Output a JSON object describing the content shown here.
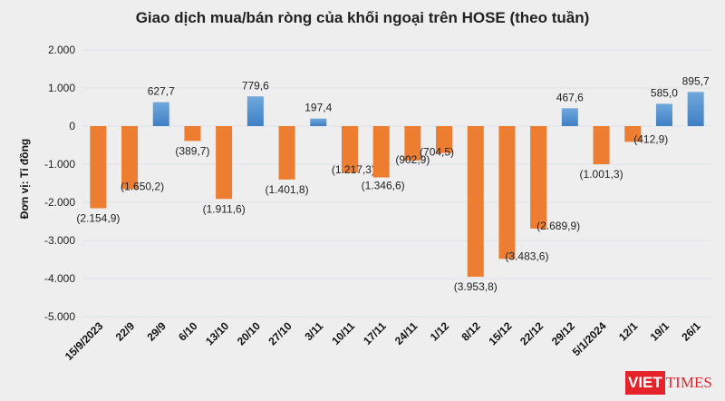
{
  "chart_data": {
    "type": "bar",
    "title": "Giao dịch mua/bán ròng của khối ngoại trên HOSE (theo tuần)",
    "ylabel": "Đơn vị: Tỉ đồng",
    "xlabel": "",
    "ylim": [
      -5000,
      2000
    ],
    "yticks": [
      2000,
      1000,
      0,
      -1000,
      -2000,
      -3000,
      -4000,
      -5000
    ],
    "ytick_labels": [
      "2.000",
      "1.000",
      "0",
      "-1.000",
      "-2.000",
      "-3.000",
      "-4.000",
      "-5.000"
    ],
    "grid": true,
    "categories": [
      "15/9/2023",
      "22/9",
      "29/9",
      "6/10",
      "13/10",
      "20/10",
      "27/10",
      "3/11",
      "10/11",
      "17/11",
      "24/11",
      "1/12",
      "8/12",
      "15/12",
      "22/12",
      "29/12",
      "5/1/2024",
      "12/1",
      "19/1",
      "26/1"
    ],
    "values": [
      -2154.9,
      -1650.2,
      627.7,
      -389.7,
      -1911.6,
      779.6,
      -1401.8,
      197.4,
      -1217.3,
      -1346.6,
      -902.9,
      -704.5,
      -3953.8,
      -3483.6,
      -2689.9,
      467.6,
      -1001.3,
      -412.9,
      585.0,
      895.7
    ],
    "data_labels": [
      "(2.154,9)",
      "(1.650,2)",
      "627,7",
      "(389,7)",
      "(1.911,6)",
      "779,6",
      "(1.401,8)",
      "197,4",
      "(1.217,3)",
      "(1.346,6)",
      "(902,9)",
      "(704,5)",
      "(3.953,8)",
      "(3.483,6)",
      "(2.689,9)",
      "467,6",
      "(1.001,3)",
      "(412,9)",
      "585,0",
      "895,7"
    ],
    "colors": {
      "positive": "#5b9bd5",
      "negative": "#ed7d31"
    }
  },
  "watermark": {
    "logo_text": "VIETTIMES",
    "part1": "VIET",
    "part2": "TIMES"
  }
}
